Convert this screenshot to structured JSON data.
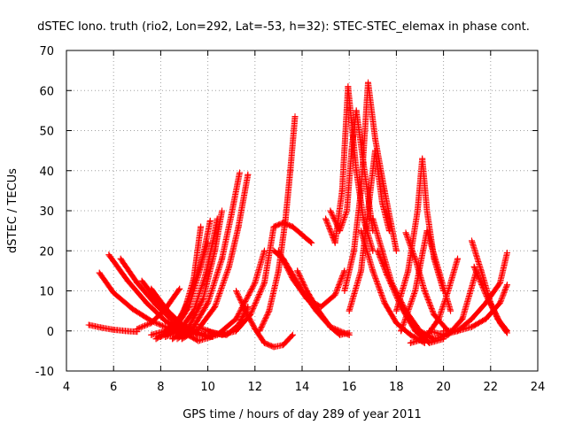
{
  "chart_data": {
    "type": "scatter",
    "title": "dSTEC Iono. truth (rio2, Lon=292, Lat=-53, h=32): STEC-STEC_elemax in phase cont.",
    "xlabel": "GPS time / hours of day 289 of year 2011",
    "ylabel": "dSTEC  / TECUs",
    "xlim": [
      4,
      24
    ],
    "ylim": [
      -10,
      70
    ],
    "xticks": [
      4,
      6,
      8,
      10,
      12,
      14,
      16,
      18,
      20,
      22,
      24
    ],
    "yticks": [
      -10,
      0,
      10,
      20,
      30,
      40,
      50,
      60,
      70
    ],
    "grid": true,
    "marker": "+",
    "color": "#ff0000",
    "series": [
      {
        "x": [
          4.95,
          5.5,
          6.0,
          6.5,
          7.0
        ],
        "y": [
          1.5,
          0.8,
          0.3,
          0.0,
          -0.2
        ]
      },
      {
        "x": [
          5.4,
          6.0,
          6.8,
          7.6,
          8.4,
          9.0
        ],
        "y": [
          14.5,
          9.5,
          5.5,
          2.5,
          0.5,
          -0.5
        ]
      },
      {
        "x": [
          5.8,
          6.6,
          7.4,
          8.2,
          8.8,
          9.2
        ],
        "y": [
          19.0,
          12.5,
          7.0,
          2.5,
          0.3,
          -0.5
        ]
      },
      {
        "x": [
          6.3,
          7.0,
          7.8,
          8.6,
          9.2,
          9.6
        ],
        "y": [
          18.0,
          12.0,
          6.5,
          2.0,
          0.0,
          -1.0
        ]
      },
      {
        "x": [
          7.2,
          8.0,
          8.8,
          9.4,
          9.9
        ],
        "y": [
          12.5,
          6.5,
          2.0,
          0.0,
          -1.0
        ]
      },
      {
        "x": [
          7.6,
          8.3,
          9.0,
          9.6,
          10.2
        ],
        "y": [
          10.5,
          5.0,
          1.0,
          -1.0,
          -1.5
        ]
      },
      {
        "x": [
          7.0,
          7.6,
          8.2,
          8.8
        ],
        "y": [
          0.5,
          2.0,
          5.5,
          10.5
        ]
      },
      {
        "x": [
          7.6,
          8.2,
          8.8,
          9.2,
          9.6,
          10.0
        ],
        "y": [
          -1.0,
          0.0,
          3.0,
          8.0,
          15.0,
          22.0
        ]
      },
      {
        "x": [
          7.8,
          8.4,
          9.0,
          9.4,
          9.7
        ],
        "y": [
          -2.0,
          0.0,
          5.0,
          13.0,
          26.0
        ]
      },
      {
        "x": [
          8.0,
          8.6,
          9.2,
          9.7,
          10.1
        ],
        "y": [
          -1.5,
          0.5,
          6.0,
          16.0,
          27.5
        ]
      },
      {
        "x": [
          8.2,
          8.8,
          9.4,
          9.9,
          10.2,
          10.4
        ],
        "y": [
          -1.5,
          0.0,
          5.0,
          14.0,
          22.0,
          28.0
        ]
      },
      {
        "x": [
          8.5,
          9.2,
          9.8,
          10.3,
          10.6
        ],
        "y": [
          -2.0,
          1.0,
          8.0,
          20.0,
          30.0
        ]
      },
      {
        "x": [
          8.7,
          9.4,
          10.0,
          10.6,
          11.0,
          11.35
        ],
        "y": [
          -2.0,
          1.0,
          7.0,
          18.0,
          29.0,
          39.5
        ]
      },
      {
        "x": [
          8.9,
          9.6,
          10.3,
          10.9,
          11.3,
          11.7
        ],
        "y": [
          -2.0,
          0.5,
          6.0,
          16.0,
          26.0,
          39.0
        ]
      },
      {
        "x": [
          9.6,
          10.2,
          10.8,
          11.3,
          11.7
        ],
        "y": [
          1.0,
          -0.5,
          -1.0,
          1.5,
          6.0
        ]
      },
      {
        "x": [
          9.0,
          9.6,
          10.4,
          11.2,
          12.0,
          12.4
        ],
        "y": [
          -0.5,
          -2.5,
          -1.0,
          3.0,
          12.0,
          20.0
        ]
      },
      {
        "x": [
          10.0,
          10.6,
          11.2
        ],
        "y": [
          0.0,
          -1.0,
          0.0
        ]
      },
      {
        "x": [
          11.2,
          11.6,
          12.0,
          12.4,
          12.8,
          13.2,
          13.6
        ],
        "y": [
          10.0,
          5.0,
          0.5,
          -3.0,
          -4.0,
          -3.5,
          -1.0
        ]
      },
      {
        "x": [
          11.2,
          11.8,
          12.4,
          12.8,
          13.2,
          13.6,
          14.0,
          14.4
        ],
        "y": [
          0.0,
          4.0,
          12.0,
          26.0,
          27.0,
          26.0,
          24.0,
          22.0
        ]
      },
      {
        "x": [
          12.8,
          13.2,
          13.6,
          14.0,
          14.6,
          15.2,
          16.0
        ],
        "y": [
          20.0,
          18.0,
          14.0,
          10.0,
          5.0,
          1.0,
          -1.0
        ]
      },
      {
        "x": [
          13.0,
          13.6,
          14.2,
          14.8,
          15.4,
          15.8
        ],
        "y": [
          20.0,
          13.0,
          8.0,
          6.0,
          9.0,
          15.0
        ]
      },
      {
        "x": [
          13.8,
          14.2,
          14.7,
          15.2,
          15.6,
          16.0
        ],
        "y": [
          15.0,
          10.0,
          5.0,
          1.0,
          -1.0,
          -0.5
        ]
      },
      {
        "x": [
          12.2,
          12.6,
          13.0,
          13.3,
          13.5,
          13.7
        ],
        "y": [
          0.0,
          5.0,
          15.0,
          28.0,
          40.0,
          53.5
        ]
      },
      {
        "x": [
          15.0,
          15.4,
          15.7,
          15.95,
          16.1,
          16.3,
          16.6,
          17.0
        ],
        "y": [
          28.0,
          22.0,
          35.0,
          61.0,
          52.0,
          40.0,
          28.0,
          20.0
        ]
      },
      {
        "x": [
          15.2,
          15.6,
          15.9,
          16.1,
          16.3,
          16.6,
          17.0
        ],
        "y": [
          30.0,
          25.0,
          30.0,
          45.0,
          55.0,
          42.0,
          25.0
        ]
      },
      {
        "x": [
          15.8,
          16.2,
          16.5,
          16.8,
          17.1,
          17.5,
          18.0
        ],
        "y": [
          10.0,
          20.0,
          35.0,
          62.0,
          48.0,
          35.0,
          20.0
        ]
      },
      {
        "x": [
          16.0,
          16.5,
          16.8,
          17.1,
          17.4,
          17.7
        ],
        "y": [
          5.0,
          15.0,
          30.0,
          45.0,
          32.0,
          25.0
        ]
      },
      {
        "x": [
          16.5,
          17.0,
          17.5,
          18.0,
          18.6,
          19.2
        ],
        "y": [
          25.0,
          15.0,
          7.0,
          2.0,
          -1.0,
          -3.0
        ]
      },
      {
        "x": [
          17.0,
          17.4,
          17.8,
          18.4,
          19.0,
          19.6
        ],
        "y": [
          28.0,
          20.0,
          12.0,
          5.0,
          0.0,
          -2.0
        ]
      },
      {
        "x": [
          17.2,
          17.6,
          18.2,
          18.8,
          19.4,
          20.0
        ],
        "y": [
          20.0,
          14.0,
          6.0,
          0.0,
          -3.0,
          -2.0
        ]
      },
      {
        "x": [
          18.4,
          18.8,
          19.2,
          19.6,
          20.2
        ],
        "y": [
          24.5,
          18.0,
          10.0,
          4.0,
          0.0
        ]
      },
      {
        "x": [
          18.0,
          18.5,
          18.9,
          19.1,
          19.3,
          19.6,
          20.0
        ],
        "y": [
          5.0,
          15.0,
          30.0,
          43.0,
          30.0,
          18.0,
          10.0
        ]
      },
      {
        "x": [
          18.2,
          18.8,
          19.3,
          19.8,
          20.3
        ],
        "y": [
          0.0,
          10.0,
          25.0,
          15.0,
          5.0
        ]
      },
      {
        "x": [
          18.6,
          19.2,
          19.8,
          20.2,
          20.6
        ],
        "y": [
          -3.0,
          -2.0,
          3.0,
          10.0,
          18.0
        ]
      },
      {
        "x": [
          19.0,
          19.6,
          20.2,
          20.8,
          21.4
        ],
        "y": [
          -1.0,
          -2.0,
          -1.0,
          3.0,
          15.0
        ]
      },
      {
        "x": [
          19.4,
          20.0,
          20.6,
          21.2,
          21.8,
          22.4,
          22.7
        ],
        "y": [
          0.0,
          -1.0,
          0.0,
          3.0,
          7.0,
          12.0,
          19.5
        ]
      },
      {
        "x": [
          20.0,
          20.6,
          21.2,
          21.8,
          22.4,
          22.7
        ],
        "y": [
          0.0,
          0.0,
          1.0,
          3.0,
          7.0,
          11.5
        ]
      },
      {
        "x": [
          21.2,
          21.6,
          22.0,
          22.4,
          22.7
        ],
        "y": [
          22.5,
          15.0,
          7.0,
          2.0,
          -0.5
        ]
      },
      {
        "x": [
          21.3,
          21.8,
          22.3,
          22.7
        ],
        "y": [
          16.0,
          9.0,
          3.0,
          0.0
        ]
      }
    ]
  }
}
